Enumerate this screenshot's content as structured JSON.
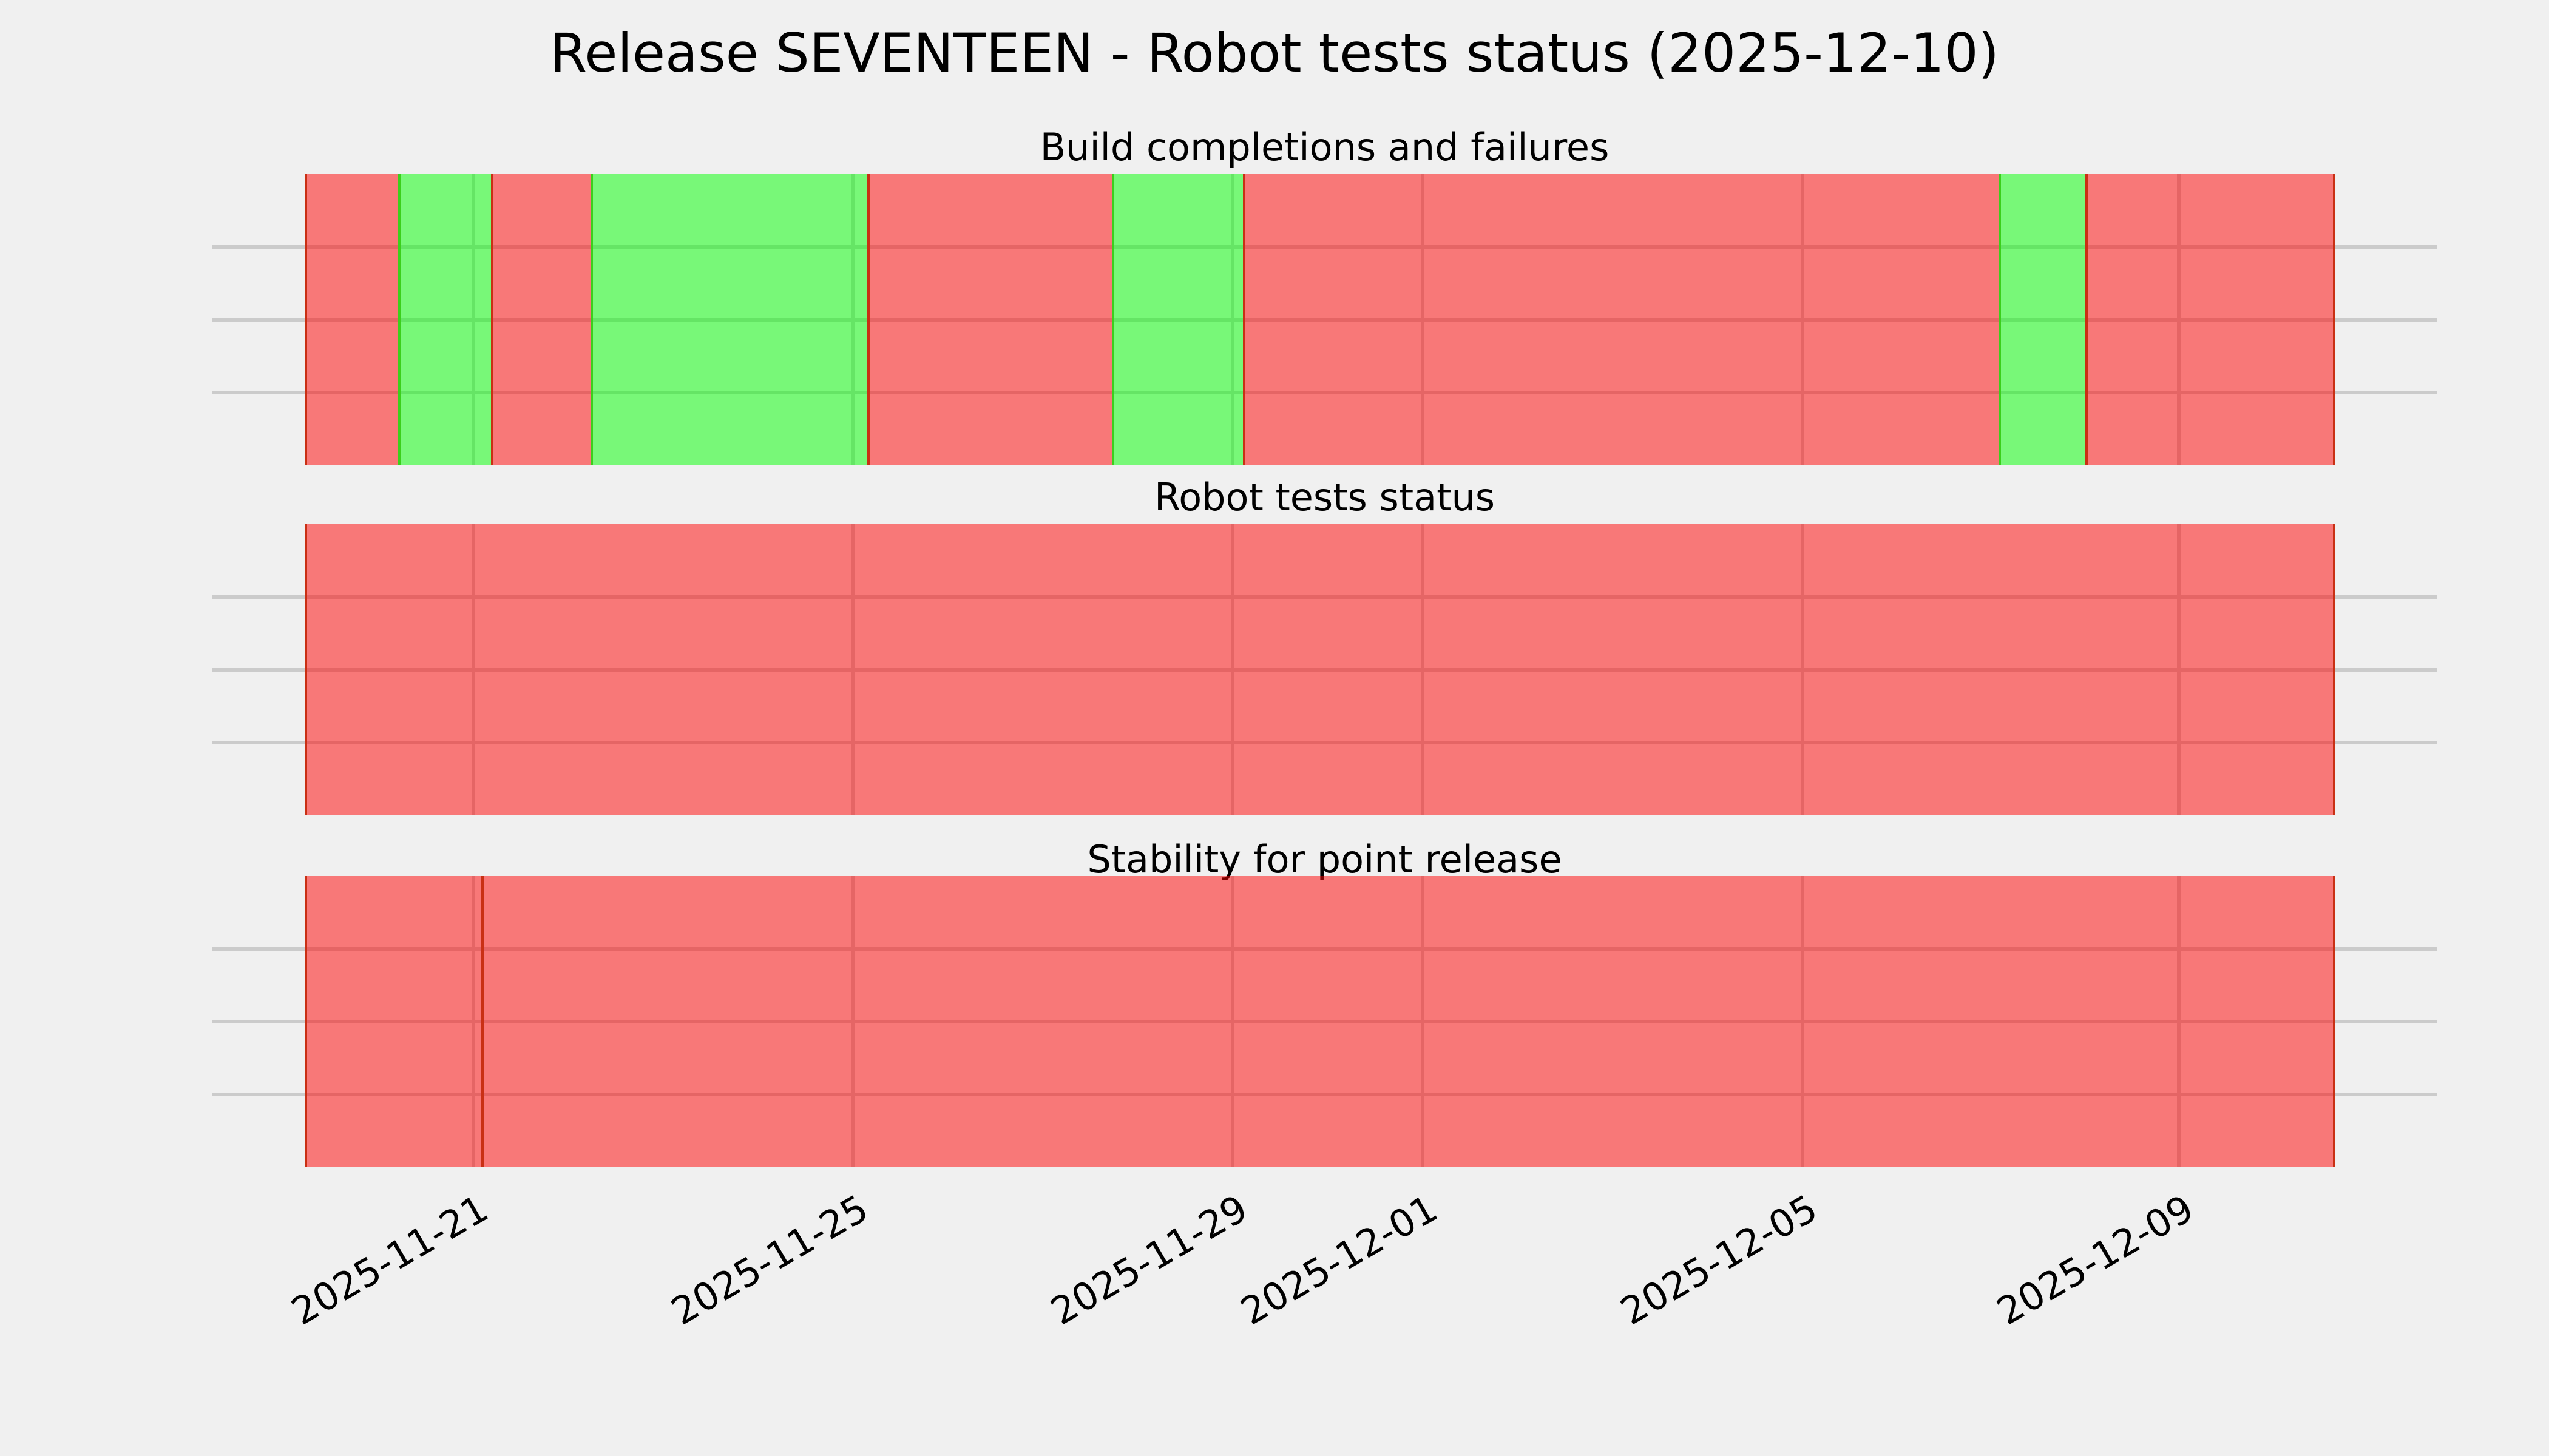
{
  "figure": {
    "title": "Release SEVENTEEN - Robot tests status (2025-12-10)",
    "background": "#f0f0f0",
    "text_color": "#000000"
  },
  "status_colors": {
    "fail_fill": "rgba(255, 0, 0, 0.5)",
    "fail_edge": "#c93014",
    "pass_fill": "rgba(0, 255, 0, 0.5)",
    "pass_edge": "#3bcf1c",
    "gridline": "#cbcbcb"
  },
  "x_axis": {
    "tick_labels": [
      "2025-11-21",
      "2025-11-25",
      "2025-11-29",
      "2025-12-01",
      "2025-12-05",
      "2025-12-09"
    ],
    "tick_pct": [
      11.73,
      28.81,
      45.86,
      54.41,
      71.49,
      88.4
    ],
    "label_rotation_deg": 30,
    "grid": true
  },
  "chart_data": {
    "type": "status-timeline",
    "title": "Release SEVENTEEN - Robot tests status (2025-12-10)",
    "x_range": [
      "2025-11-19",
      "2025-12-10"
    ],
    "legend": "none",
    "panels": [
      {
        "title": "Build completions and failures",
        "segments": [
          {
            "status": "fail",
            "approx_start": "2025-11-19 05:00",
            "approx_end": "2025-11-20 05:00",
            "x0_pct": 0,
            "x1_pct": 4.6
          },
          {
            "status": "pass",
            "approx_start": "2025-11-20 05:00",
            "approx_end": "2025-11-21 04:30",
            "x0_pct": 4.6,
            "x1_pct": 9.17
          },
          {
            "status": "fail",
            "approx_start": "2025-11-21 04:30",
            "approx_end": "2025-11-22 05:30",
            "x0_pct": 9.17,
            "x1_pct": 14.08
          },
          {
            "status": "pass",
            "approx_start": "2025-11-22 05:30",
            "approx_end": "2025-11-25 03:30",
            "x0_pct": 14.08,
            "x1_pct": 27.7
          },
          {
            "status": "fail",
            "approx_start": "2025-11-25 03:30",
            "approx_end": "2025-11-27 17:30",
            "x0_pct": 27.7,
            "x1_pct": 39.75
          },
          {
            "status": "pass",
            "approx_start": "2025-11-27 17:30",
            "approx_end": "2025-11-29 02:30",
            "x0_pct": 39.75,
            "x1_pct": 46.2
          },
          {
            "status": "fail",
            "approx_start": "2025-11-29 02:30",
            "approx_end": "2025-12-07 01:30",
            "x0_pct": 46.2,
            "x1_pct": 83.4
          },
          {
            "status": "pass",
            "approx_start": "2025-12-07 01:30",
            "approx_end": "2025-12-08 00:00",
            "x0_pct": 83.4,
            "x1_pct": 87.7
          },
          {
            "status": "fail",
            "approx_start": "2025-12-08 00:00",
            "approx_end": "2025-12-10 15:00",
            "x0_pct": 87.7,
            "x1_pct": 100
          }
        ]
      },
      {
        "title": "Robot tests status",
        "segments": [
          {
            "status": "fail",
            "approx_start": "2025-11-19 05:00",
            "approx_end": "2025-12-10 15:00",
            "x0_pct": 0,
            "x1_pct": 100
          }
        ]
      },
      {
        "title": "Stability for point release",
        "segments": [
          {
            "status": "fail",
            "approx_start": "2025-11-19 05:00",
            "approx_end": "2025-11-21 02:00",
            "x0_pct": 0,
            "x1_pct": 8.69
          },
          {
            "status": "fail",
            "approx_start": "2025-11-21 02:00",
            "approx_end": "2025-12-10 15:00",
            "x0_pct": 8.69,
            "x1_pct": 100
          }
        ]
      }
    ]
  }
}
